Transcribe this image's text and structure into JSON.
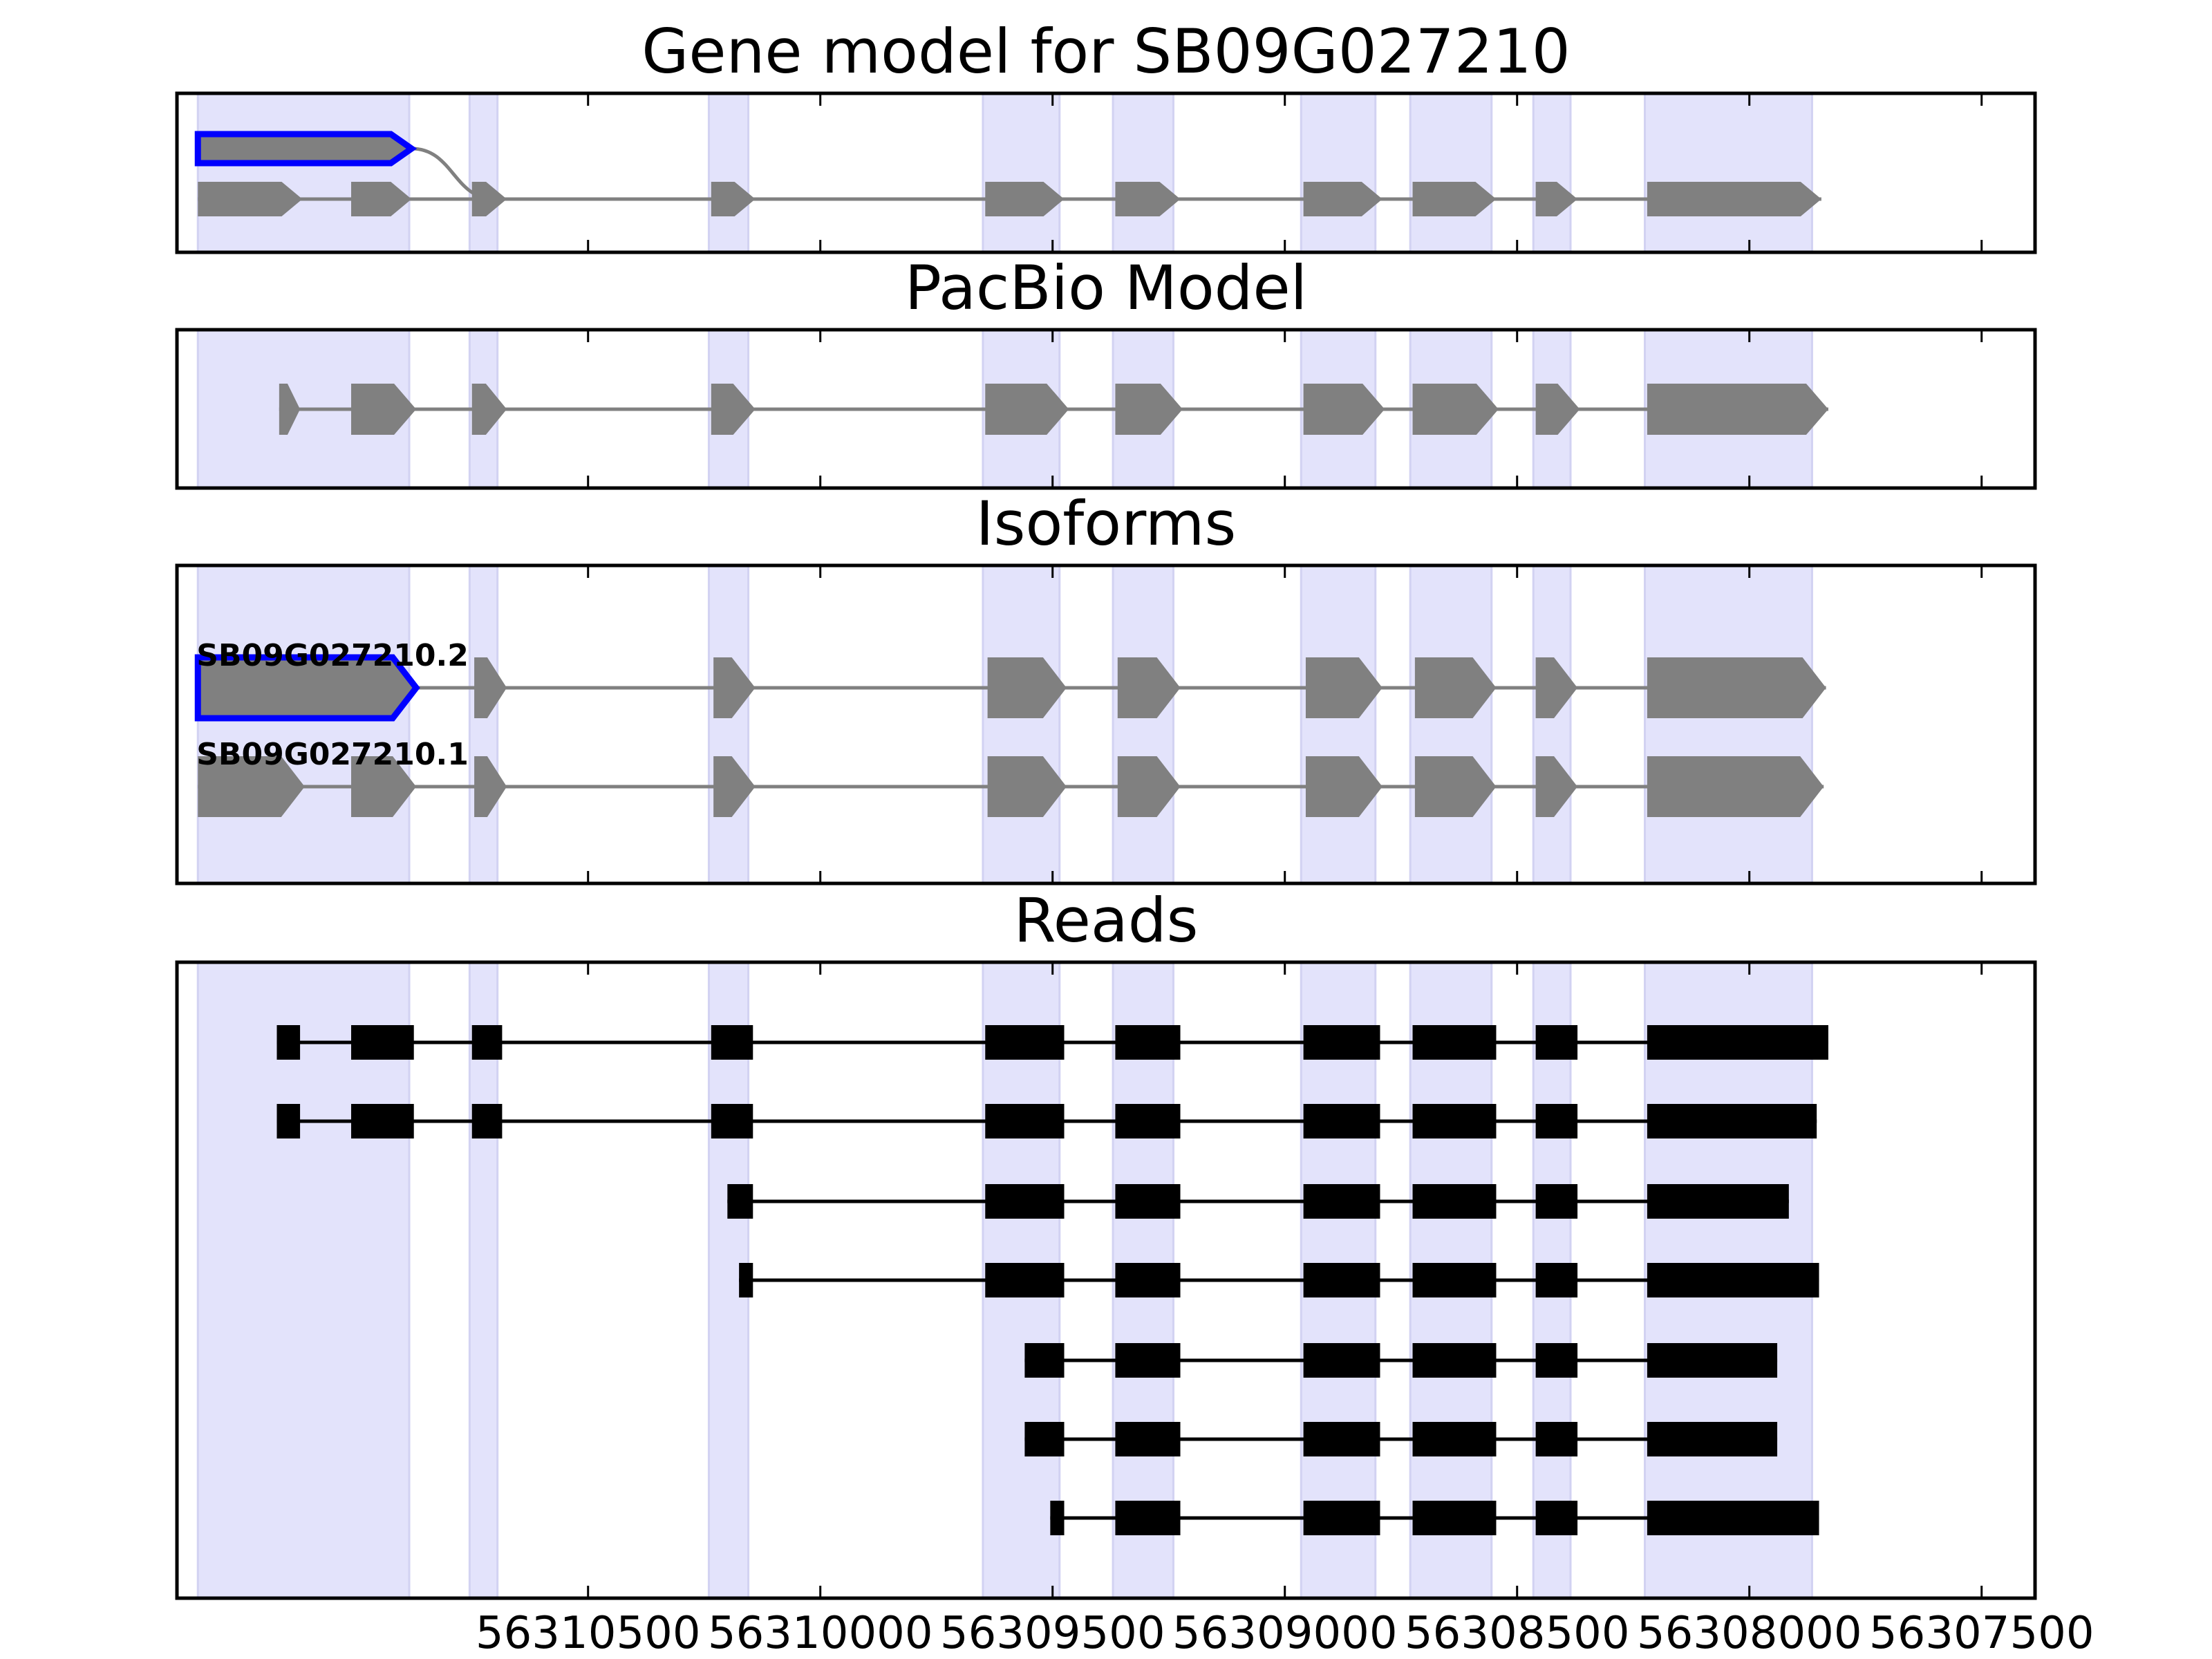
{
  "chart_data": {
    "type": "gene-structure",
    "x_axis": {
      "reversed": true,
      "domain": [
        56311385,
        56307385
      ],
      "ticks": [
        56310500,
        56310000,
        56309500,
        56309000,
        56308500,
        56308000,
        56307500
      ],
      "tick_labels": [
        "56310500",
        "56310000",
        "56309500",
        "56309000",
        "56308500",
        "56308000",
        "56307500"
      ]
    },
    "shaded_exon_regions": [
      [
        56311340,
        56310885
      ],
      [
        56310755,
        56310695
      ],
      [
        56310240,
        56310155
      ],
      [
        56309650,
        56309485
      ],
      [
        56309370,
        56309240
      ],
      [
        56308965,
        56308805
      ],
      [
        56308730,
        56308555
      ],
      [
        56308465,
        56308385
      ],
      [
        56308225,
        56307865
      ]
    ],
    "colors": {
      "shading": "#e3e3fb",
      "shading_edge": "#d2d2f2",
      "exon": "#808080",
      "highlight_outline": "#0000ff",
      "read": "#000000"
    },
    "panels": [
      {
        "title": "Gene model for SB09G027210",
        "tracks": [
          {
            "highlighted": true,
            "exons": [
              [
                56311340,
                56310880
              ]
            ],
            "connector_to": 56310700
          },
          {
            "highlighted": false,
            "exons": [
              [
                56311340,
                56311115
              ],
              [
                56311010,
                56310880
              ],
              [
                56310750,
                56310675
              ],
              [
                56310235,
                56310140
              ],
              [
                56309645,
                56309475
              ],
              [
                56309365,
                56309225
              ],
              [
                56308960,
                56308790
              ],
              [
                56308725,
                56308545
              ],
              [
                56308460,
                56308370
              ],
              [
                56308220,
                56307845
              ]
            ]
          }
        ]
      },
      {
        "title": "PacBio Model",
        "tracks": [
          {
            "highlighted": false,
            "exons": [
              [
                56311165,
                56311120
              ],
              [
                56311010,
                56310870
              ],
              [
                56310750,
                56310675
              ],
              [
                56310235,
                56310140
              ],
              [
                56309645,
                56309465
              ],
              [
                56309365,
                56309220
              ],
              [
                56308960,
                56308785
              ],
              [
                56308725,
                56308540
              ],
              [
                56308460,
                56308365
              ],
              [
                56308220,
                56307830
              ]
            ]
          }
        ]
      },
      {
        "title": "Isoforms",
        "tracks": [
          {
            "name": "SB09G027210.2",
            "highlighted": true,
            "exons": [
              [
                56311340,
                56310870
              ],
              [
                56310745,
                56310675
              ],
              [
                56310230,
                56310140
              ],
              [
                56309640,
                56309470
              ],
              [
                56309360,
                56309225
              ],
              [
                56308955,
                56308790
              ],
              [
                56308720,
                56308545
              ],
              [
                56308460,
                56308370
              ],
              [
                56308220,
                56307835
              ]
            ]
          },
          {
            "name": "SB09G027210.1",
            "highlighted": false,
            "exons": [
              [
                56311340,
                56311110
              ],
              [
                56311010,
                56310870
              ],
              [
                56310745,
                56310675
              ],
              [
                56310230,
                56310140
              ],
              [
                56309640,
                56309470
              ],
              [
                56309360,
                56309225
              ],
              [
                56308955,
                56308790
              ],
              [
                56308720,
                56308545
              ],
              [
                56308460,
                56308370
              ],
              [
                56308220,
                56307840
              ]
            ]
          }
        ]
      },
      {
        "title": "Reads",
        "tracks": [
          {
            "exons": [
              [
                56311170,
                56311120
              ],
              [
                56311010,
                56310875
              ],
              [
                56310750,
                56310685
              ],
              [
                56310235,
                56310145
              ],
              [
                56309645,
                56309475
              ],
              [
                56309365,
                56309225
              ],
              [
                56308960,
                56308795
              ],
              [
                56308725,
                56308545
              ],
              [
                56308460,
                56308370
              ],
              [
                56308220,
                56307830
              ]
            ]
          },
          {
            "exons": [
              [
                56311170,
                56311120
              ],
              [
                56311010,
                56310875
              ],
              [
                56310750,
                56310685
              ],
              [
                56310235,
                56310145
              ],
              [
                56309645,
                56309475
              ],
              [
                56309365,
                56309225
              ],
              [
                56308960,
                56308795
              ],
              [
                56308725,
                56308545
              ],
              [
                56308460,
                56308370
              ],
              [
                56308220,
                56307855
              ]
            ]
          },
          {
            "exons": [
              [
                56310200,
                56310145
              ],
              [
                56309645,
                56309475
              ],
              [
                56309365,
                56309225
              ],
              [
                56308960,
                56308795
              ],
              [
                56308725,
                56308545
              ],
              [
                56308460,
                56308370
              ],
              [
                56308220,
                56307915
              ]
            ]
          },
          {
            "exons": [
              [
                56310175,
                56310145
              ],
              [
                56309645,
                56309475
              ],
              [
                56309365,
                56309225
              ],
              [
                56308960,
                56308795
              ],
              [
                56308725,
                56308545
              ],
              [
                56308460,
                56308370
              ],
              [
                56308220,
                56307850
              ]
            ]
          },
          {
            "exons": [
              [
                56309560,
                56309475
              ],
              [
                56309365,
                56309225
              ],
              [
                56308960,
                56308795
              ],
              [
                56308725,
                56308545
              ],
              [
                56308460,
                56308370
              ],
              [
                56308220,
                56307940
              ]
            ]
          },
          {
            "exons": [
              [
                56309560,
                56309475
              ],
              [
                56309365,
                56309225
              ],
              [
                56308960,
                56308795
              ],
              [
                56308725,
                56308545
              ],
              [
                56308460,
                56308370
              ],
              [
                56308220,
                56307940
              ]
            ]
          },
          {
            "exons": [
              [
                56309505,
                56309475
              ],
              [
                56309365,
                56309225
              ],
              [
                56308960,
                56308795
              ],
              [
                56308725,
                56308545
              ],
              [
                56308460,
                56308370
              ],
              [
                56308220,
                56307850
              ]
            ]
          }
        ]
      }
    ]
  }
}
